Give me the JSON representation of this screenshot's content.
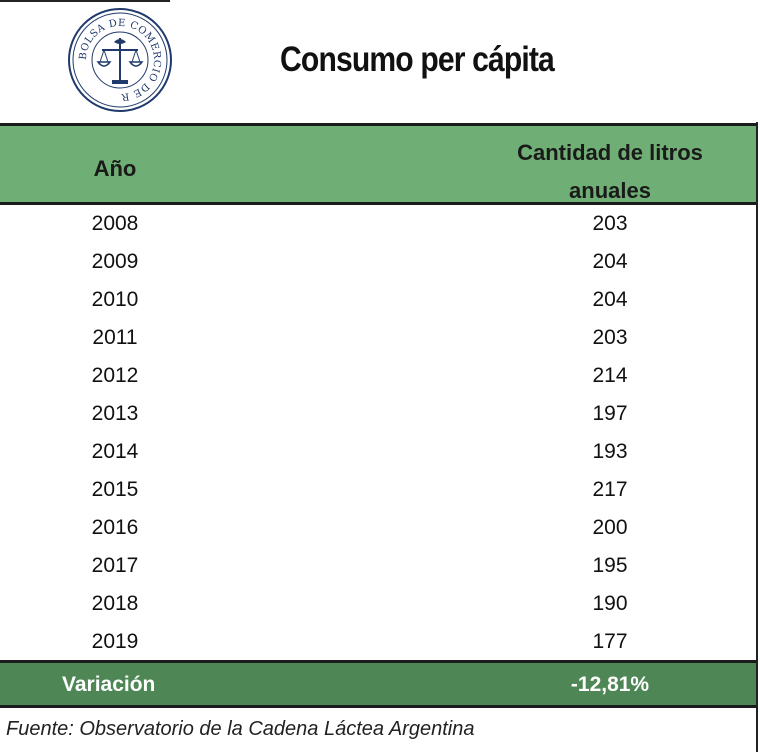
{
  "seal": {
    "text": "BOLSA DE COMERCIO DE ROSARIO"
  },
  "title": "Consumo per cápita",
  "table": {
    "headers": {
      "year": "Año",
      "quantity_line1": "Cantidad de litros",
      "quantity_line2": "anuales"
    },
    "rows": [
      {
        "year": "2008",
        "value": "203"
      },
      {
        "year": "2009",
        "value": "204"
      },
      {
        "year": "2010",
        "value": "204"
      },
      {
        "year": "2011",
        "value": "203"
      },
      {
        "year": "2012",
        "value": "214"
      },
      {
        "year": "2013",
        "value": "197"
      },
      {
        "year": "2014",
        "value": "193"
      },
      {
        "year": "2015",
        "value": "217"
      },
      {
        "year": "2016",
        "value": "200"
      },
      {
        "year": "2017",
        "value": "195"
      },
      {
        "year": "2018",
        "value": "190"
      },
      {
        "year": "2019",
        "value": "177"
      }
    ],
    "footer": {
      "label": "Variación",
      "value": "-12,81%"
    }
  },
  "source": "Fuente: Observatorio de la Cadena Láctea Argentina",
  "colors": {
    "header_bg": "#6fae74",
    "footer_bg": "#4e8655",
    "seal": "#1f3a6b"
  }
}
